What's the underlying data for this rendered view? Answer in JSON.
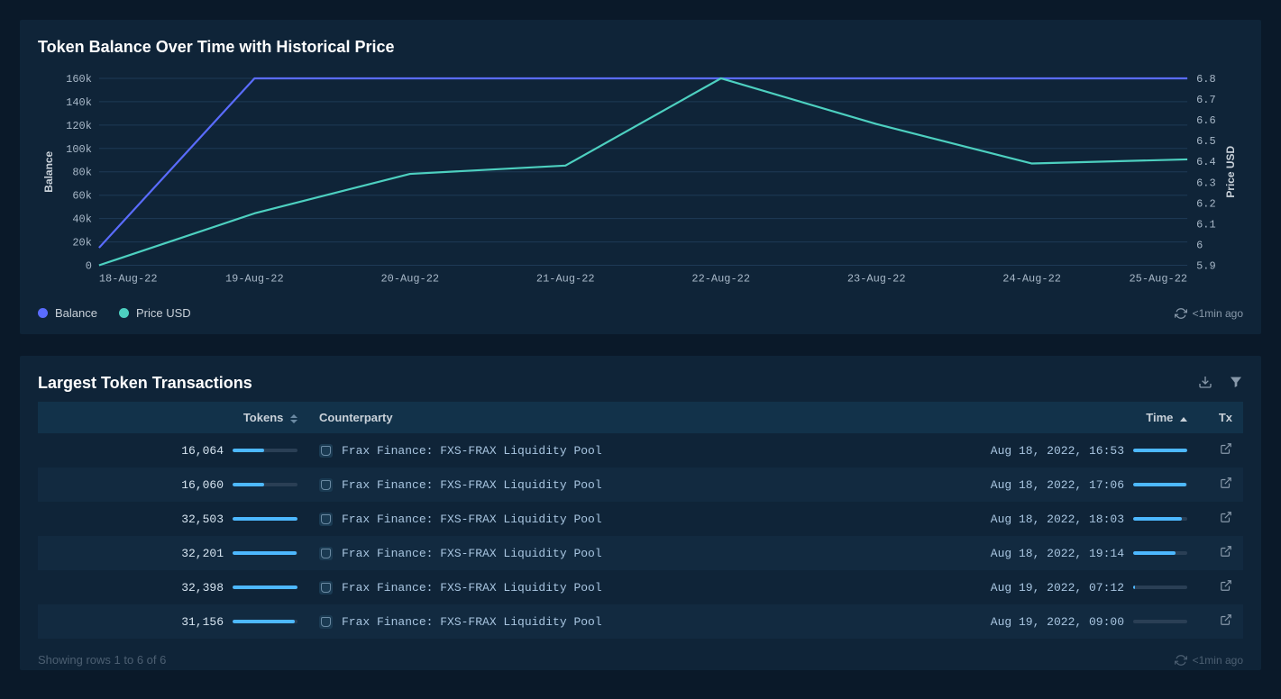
{
  "chart_panel": {
    "title": "Token Balance Over Time with Historical Price",
    "refresh_text": "<1min ago",
    "legend": [
      {
        "label": "Balance",
        "color": "#5a6cff"
      },
      {
        "label": "Price USD",
        "color": "#4dd0c0"
      }
    ],
    "chart": {
      "type": "dual-axis-line",
      "background_color": "#0f2438",
      "grid_color": "#1e3a56",
      "x_categories": [
        "18-Aug-22",
        "19-Aug-22",
        "20-Aug-22",
        "21-Aug-22",
        "22-Aug-22",
        "23-Aug-22",
        "24-Aug-22",
        "25-Aug-22"
      ],
      "y_left": {
        "label": "Balance",
        "min": 0,
        "max": 160000,
        "ticks": [
          "0",
          "20k",
          "40k",
          "60k",
          "80k",
          "100k",
          "120k",
          "140k",
          "160k"
        ]
      },
      "y_right": {
        "label": "Price USD",
        "min": 5.9,
        "max": 6.8,
        "ticks": [
          "5.9",
          "6",
          "6.1",
          "6.2",
          "6.3",
          "6.4",
          "6.5",
          "6.6",
          "6.7",
          "6.8"
        ]
      },
      "series": [
        {
          "name": "Balance",
          "axis": "left",
          "color": "#5a6cff",
          "line_width": 2.2,
          "values": [
            15000,
            160000,
            160000,
            160000,
            160000,
            160000,
            160000,
            160000
          ]
        },
        {
          "name": "Price USD",
          "axis": "right",
          "color": "#4dd0c0",
          "line_width": 2.2,
          "values": [
            5.9,
            6.15,
            6.34,
            6.38,
            6.8,
            6.58,
            6.39,
            6.41
          ]
        }
      ]
    }
  },
  "tx_panel": {
    "title": "Largest Token Transactions",
    "columns": {
      "tokens": "Tokens",
      "counterparty": "Counterparty",
      "time": "Time",
      "tx": "Tx"
    },
    "bar_color": "#4db8ff",
    "bar_track_color": "#2a3f55",
    "max_tokens": 32503,
    "time_bar_max": 100,
    "rows": [
      {
        "tokens": "16,064",
        "bar_pct": 49,
        "counterparty": "Frax Finance: FXS-FRAX Liquidity Pool",
        "time": "Aug 18, 2022, 16:53",
        "time_bar_pct": 100
      },
      {
        "tokens": "16,060",
        "bar_pct": 49,
        "counterparty": "Frax Finance: FXS-FRAX Liquidity Pool",
        "time": "Aug 18, 2022, 17:06",
        "time_bar_pct": 98
      },
      {
        "tokens": "32,503",
        "bar_pct": 100,
        "counterparty": "Frax Finance: FXS-FRAX Liquidity Pool",
        "time": "Aug 18, 2022, 18:03",
        "time_bar_pct": 90
      },
      {
        "tokens": "32,201",
        "bar_pct": 99,
        "counterparty": "Frax Finance: FXS-FRAX Liquidity Pool",
        "time": "Aug 18, 2022, 19:14",
        "time_bar_pct": 78
      },
      {
        "tokens": "32,398",
        "bar_pct": 100,
        "counterparty": "Frax Finance: FXS-FRAX Liquidity Pool",
        "time": "Aug 19, 2022, 07:12",
        "time_bar_pct": 4
      },
      {
        "tokens": "31,156",
        "bar_pct": 96,
        "counterparty": "Frax Finance: FXS-FRAX Liquidity Pool",
        "time": "Aug 19, 2022, 09:00",
        "time_bar_pct": 0
      }
    ],
    "footer_text": "Showing rows 1 to 6 of 6",
    "footer_refresh": "<1min ago"
  }
}
